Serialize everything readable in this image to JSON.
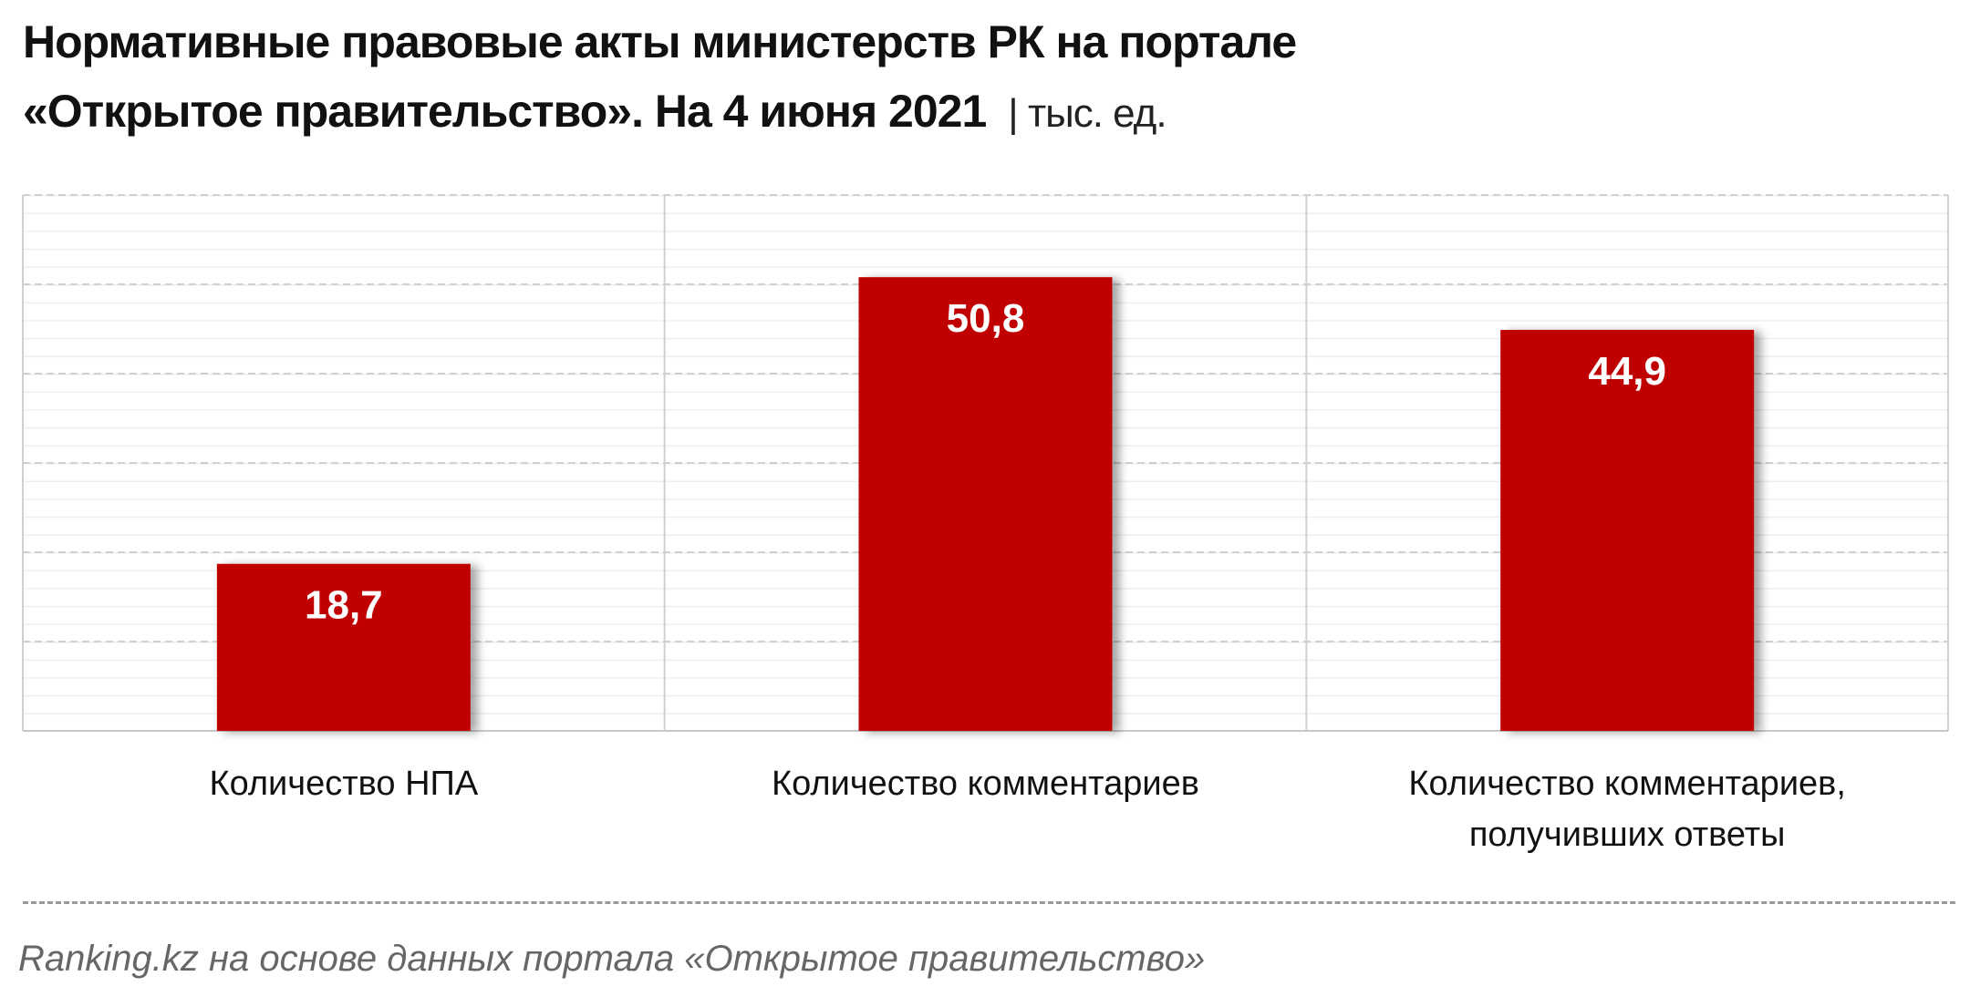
{
  "chart_data": {
    "type": "bar",
    "title": "Нормативные правовые акты министерств РК на портале",
    "title_line2": "«Открытое правительство». На 4 июня 2021",
    "subtitle": "| тыс. ед.",
    "categories": [
      "Количество НПА",
      "Количество комментариев",
      "Количество комментариев, получивших ответы"
    ],
    "values": [
      18.7,
      50.8,
      44.9
    ],
    "value_labels": [
      "18,7",
      "50,8",
      "44,9"
    ],
    "color": "#c00000",
    "ylim": [
      0,
      60
    ],
    "yticks": [
      0,
      10,
      20,
      30,
      40,
      50,
      60
    ],
    "grid": true,
    "source": "Ranking.kz на основе данных портала «Открытое правительство»"
  }
}
